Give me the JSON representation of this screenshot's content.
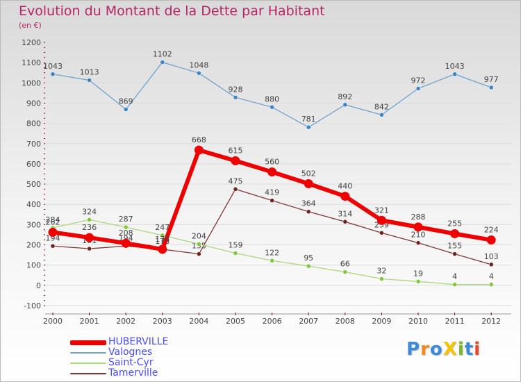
{
  "title": "Evolution du Montant de la Dette par Habitant",
  "unit_label": "(en €)",
  "logo": {
    "text": "Proxiti",
    "letters": [
      {
        "ch": "P",
        "color": "#3c8ad8"
      },
      {
        "ch": "r",
        "color": "#f08a1c"
      },
      {
        "ch": "o",
        "color": "#3c8ad8"
      },
      {
        "ch": "X",
        "color": "#f3c400"
      },
      {
        "ch": "i",
        "color": "#7ab824"
      },
      {
        "ch": "t",
        "color": "#3c8ad8"
      },
      {
        "ch": "i",
        "color": "#e84a2a"
      }
    ]
  },
  "chart_data": {
    "type": "line",
    "categories": [
      "2000",
      "2001",
      "2002",
      "2003",
      "2004",
      "2005",
      "2006",
      "2007",
      "2008",
      "2009",
      "2010",
      "2011",
      "2012"
    ],
    "ylim": [
      -100,
      1200
    ],
    "yticks": [
      -100,
      0,
      100,
      200,
      300,
      400,
      500,
      600,
      700,
      800,
      900,
      1000,
      1100,
      1200
    ],
    "grid": "horizontal",
    "legend_position": "bottom-left",
    "series": [
      {
        "name": "HUBERVILLE",
        "color": "#ee0000",
        "marker": "#ee0000",
        "values": [
          262,
          236,
          208,
          178,
          668,
          615,
          560,
          502,
          440,
          321,
          288,
          255,
          224
        ],
        "labels": [
          "262",
          "236",
          "208",
          "178",
          "668",
          "615",
          "560",
          "502",
          "440",
          "321",
          "288",
          "255",
          "224"
        ]
      },
      {
        "name": "Valognes",
        "color": "#6ea3cf",
        "marker": "#3b84c4",
        "values": [
          1043,
          1013,
          869,
          1102,
          1048,
          928,
          880,
          781,
          892,
          842,
          972,
          1043,
          977
        ],
        "labels": [
          "1043",
          "1013",
          "869",
          "1102",
          "1048",
          "928",
          "880",
          "781",
          "892",
          "842",
          "972",
          "1043",
          "977"
        ]
      },
      {
        "name": "Saint-Cyr",
        "color": "#a8d879",
        "marker": "#84c63e",
        "values": [
          284,
          324,
          287,
          247,
          204,
          159,
          122,
          95,
          66,
          32,
          19,
          4,
          4
        ],
        "labels": [
          "284",
          "324",
          "287",
          "247",
          "204",
          "159",
          "122",
          "95",
          "66",
          "32",
          "19",
          "4",
          "4"
        ]
      },
      {
        "name": "Tamerville",
        "color": "#7f3535",
        "marker": "#6e2222",
        "values": [
          194,
          181,
          194,
          178,
          155,
          475,
          419,
          364,
          314,
          259,
          210,
          155,
          103
        ],
        "labels": [
          "194",
          "181",
          "194",
          "178",
          "155",
          "475",
          "419",
          "364",
          "314",
          "259",
          "210",
          "155",
          "103"
        ]
      }
    ]
  }
}
